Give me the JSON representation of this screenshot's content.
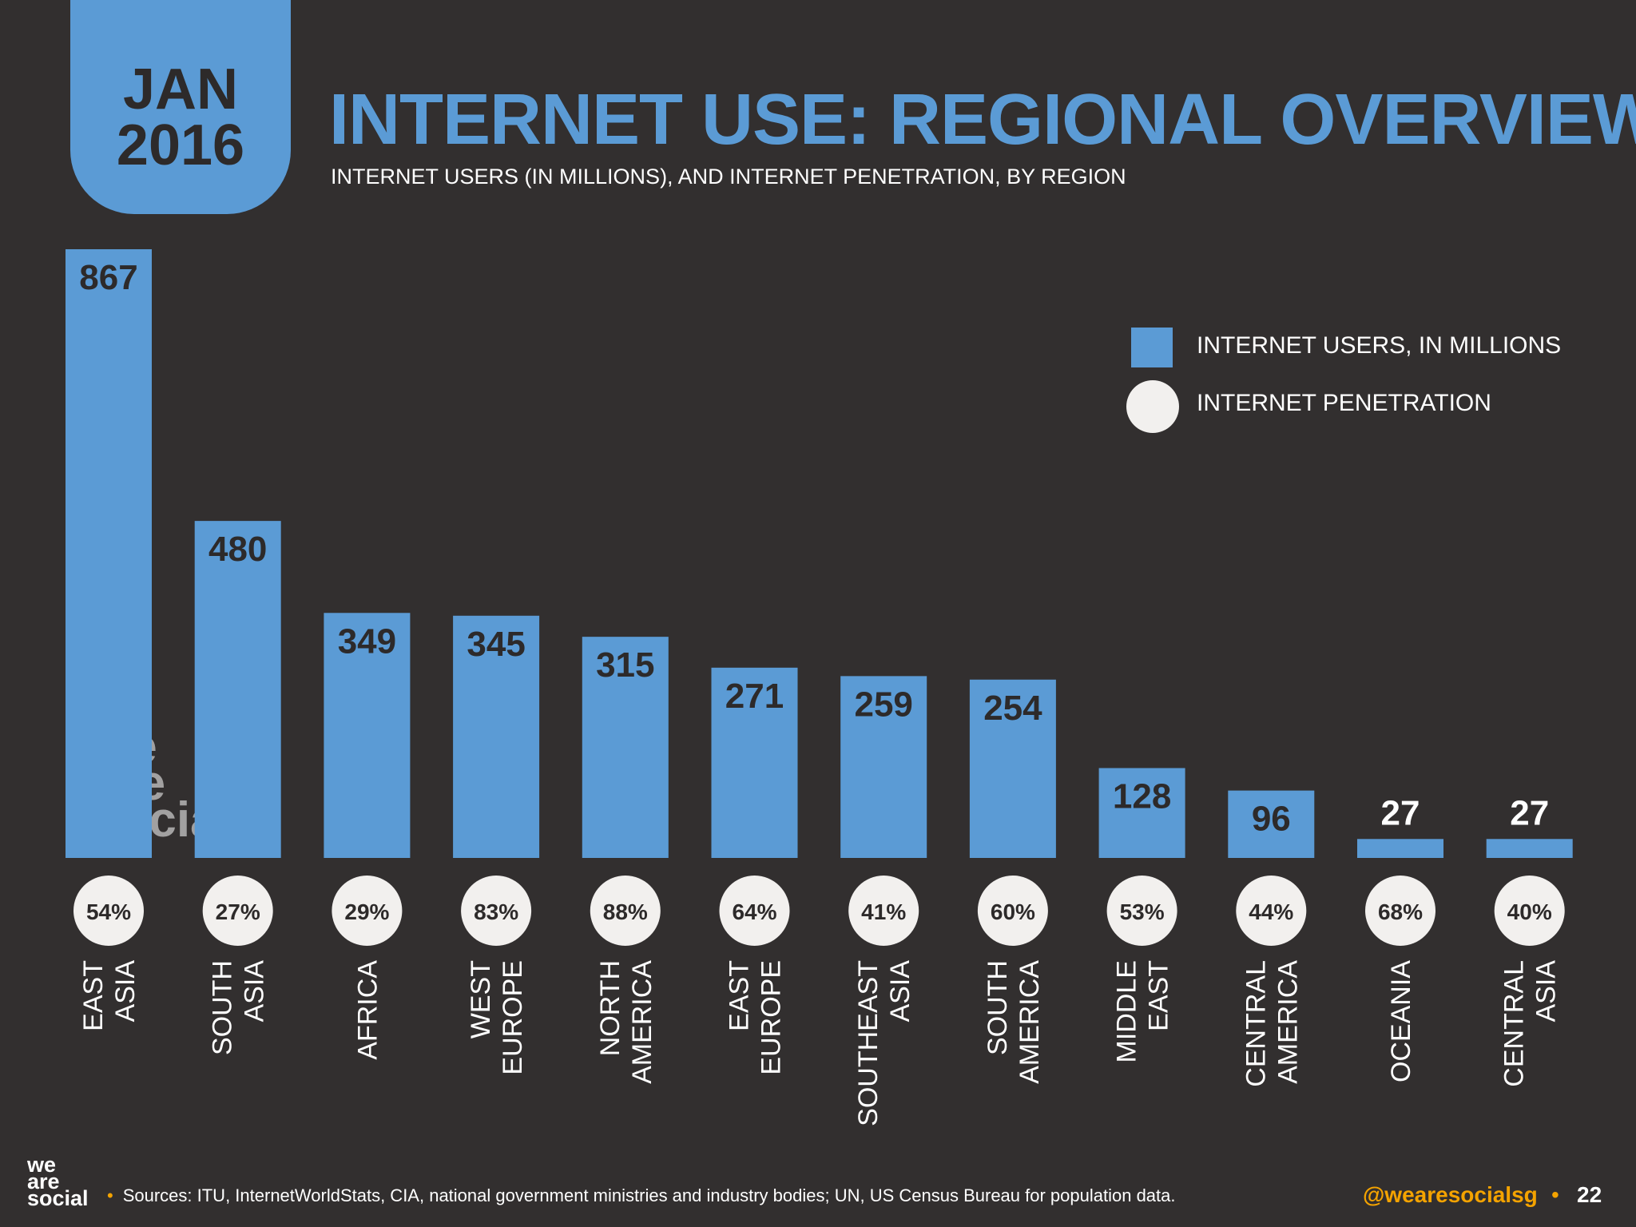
{
  "header": {
    "date_month": "JAN",
    "date_year": "2016",
    "title": "INTERNET USE: REGIONAL OVERVIEW",
    "subtitle": "INTERNET USERS (IN MILLIONS), AND INTERNET PENETRATION, BY REGION"
  },
  "legend": {
    "users_label": "INTERNET USERS, IN MILLIONS",
    "penetration_label": "INTERNET PENETRATION"
  },
  "colors": {
    "background": "#322f2f",
    "bar": "#5b9bd5",
    "circle": "#f2f0ee",
    "accent": "#f4a300"
  },
  "chart_data": {
    "type": "bar",
    "title": "INTERNET USE: REGIONAL OVERVIEW",
    "subtitle": "INTERNET USERS (IN MILLIONS), AND INTERNET PENETRATION, BY REGION",
    "categories": [
      [
        "EAST",
        "ASIA"
      ],
      [
        "SOUTH",
        "ASIA"
      ],
      [
        "AFRICA"
      ],
      [
        "WEST",
        "EUROPE"
      ],
      [
        "NORTH",
        "AMERICA"
      ],
      [
        "EAST",
        "EUROPE"
      ],
      [
        "SOUTHEAST",
        "ASIA"
      ],
      [
        "SOUTH",
        "AMERICA"
      ],
      [
        "MIDDLE",
        "EAST"
      ],
      [
        "CENTRAL",
        "AMERICA"
      ],
      [
        "OCEANIA"
      ],
      [
        "CENTRAL",
        "ASIA"
      ]
    ],
    "series": [
      {
        "name": "INTERNET USERS, IN MILLIONS",
        "values": [
          867,
          480,
          349,
          345,
          315,
          271,
          259,
          254,
          128,
          96,
          27,
          27
        ]
      },
      {
        "name": "INTERNET PENETRATION",
        "values": [
          "54%",
          "27%",
          "29%",
          "83%",
          "88%",
          "64%",
          "41%",
          "60%",
          "53%",
          "44%",
          "68%",
          "40%"
        ]
      }
    ],
    "ylim": [
      0,
      867
    ],
    "grid": false,
    "legend_position": "top-right"
  },
  "footer": {
    "logo_lines": [
      "we",
      "are",
      "social"
    ],
    "watermark_lines": [
      "we",
      "are",
      "social"
    ],
    "sources": "Sources: ITU, InternetWorldStats, CIA, national government ministries and industry bodies; UN, US Census Bureau for population data.",
    "handle": "@wearesocialsg",
    "page_number": "22"
  }
}
